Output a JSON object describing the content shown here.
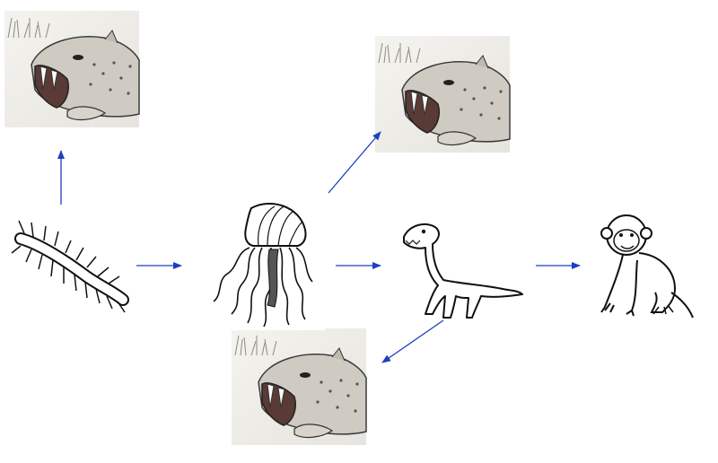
{
  "diagram": {
    "background": "#ffffff",
    "arrow_color": "#1f3fbf",
    "organisms": {
      "centipede": {
        "icon": "centipede-icon"
      },
      "jellyfish": {
        "icon": "jellyfish-icon"
      },
      "dinosaur": {
        "icon": "dinosaur-icon"
      },
      "monkey": {
        "icon": "monkey-icon"
      },
      "sabertooth_top_left": {
        "icon": "sabertooth-cat-icon"
      },
      "sabertooth_top_right": {
        "icon": "sabertooth-cat-icon"
      },
      "sabertooth_bottom": {
        "icon": "sabertooth-cat-icon"
      }
    },
    "arrows": [
      {
        "from": "centipede",
        "to": "sabertooth_top_left"
      },
      {
        "from": "centipede",
        "to": "jellyfish"
      },
      {
        "from": "jellyfish",
        "to": "sabertooth_top_right"
      },
      {
        "from": "jellyfish",
        "to": "dinosaur"
      },
      {
        "from": "dinosaur",
        "to": "monkey"
      },
      {
        "from": "dinosaur",
        "to": "sabertooth_bottom"
      }
    ]
  }
}
